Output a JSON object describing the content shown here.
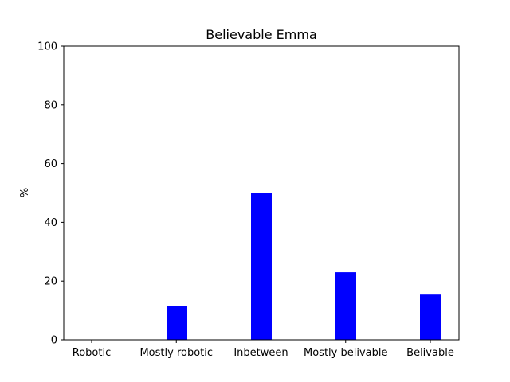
{
  "chart_data": {
    "type": "bar",
    "title": "Believable Emma",
    "xlabel": "",
    "ylabel": "%",
    "categories": [
      "Robotic",
      "Mostly robotic",
      "Inbetween",
      "Mostly belivable",
      "Belivable"
    ],
    "values": [
      0,
      11.5,
      50,
      23,
      15.4
    ],
    "ylim": [
      0,
      100
    ],
    "yticks": [
      0,
      20,
      40,
      60,
      80,
      100
    ],
    "bar_color": "#0000ff",
    "grid": false
  }
}
